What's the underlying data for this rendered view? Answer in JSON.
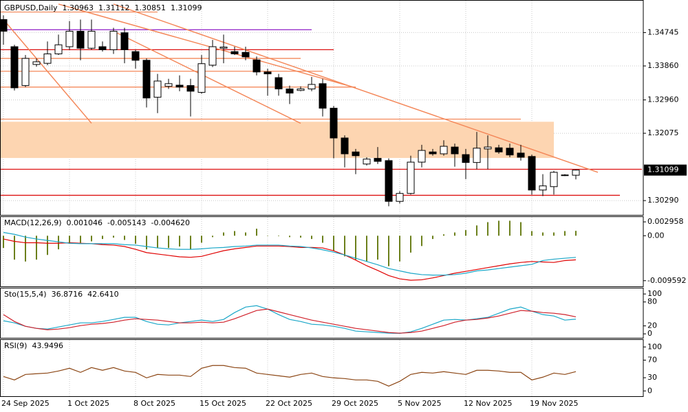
{
  "chart_data": [
    {
      "type": "candlestick",
      "title": "GBPUSD,Daily",
      "categories": [
        "24 Sep 2025",
        null,
        null,
        null,
        null,
        null,
        "1 Oct 2025",
        null,
        null,
        null,
        null,
        null,
        "8 Oct 2025",
        null,
        null,
        null,
        null,
        null,
        "15 Oct 2025",
        null,
        null,
        null,
        null,
        null,
        "22 Oct 2025",
        null,
        null,
        null,
        null,
        null,
        "29 Oct 2025",
        null,
        null,
        null,
        null,
        null,
        "5 Nov 2025",
        null,
        null,
        null,
        null,
        null,
        "12 Nov 2025",
        null,
        null,
        null,
        null,
        null,
        "19 Nov 2025",
        null,
        null,
        null,
        null
      ],
      "open": [
        1.3509,
        1.3437,
        1.3334,
        1.339,
        1.3393,
        1.3418,
        1.3437,
        1.3478,
        1.3433,
        1.3437,
        1.3429,
        1.3474,
        1.3424,
        1.3401,
        1.3303,
        1.3332,
        1.3335,
        1.3334,
        1.3316,
        1.3388,
        1.3433,
        1.3424,
        1.3422,
        1.3402,
        1.337,
        1.3355,
        1.3325,
        1.3321,
        1.3325,
        1.3339,
        1.3274,
        1.3195,
        1.3158,
        1.3126,
        1.3141,
        1.3135,
        1.3027,
        1.3048,
        1.3131,
        1.3158,
        1.3153,
        1.3171,
        1.3151,
        1.313,
        1.3166,
        1.3169,
        1.3168,
        1.3155,
        1.3146,
        1.3057,
        1.3066,
        1.3097,
        1.30963
      ],
      "high": [
        1.352,
        1.3442,
        1.3415,
        1.3406,
        1.3451,
        1.3469,
        1.3505,
        1.3509,
        1.3509,
        1.3451,
        1.3487,
        1.3487,
        1.3429,
        1.3406,
        1.3365,
        1.3352,
        1.3361,
        1.3352,
        1.3415,
        1.3455,
        1.3469,
        1.3437,
        1.3437,
        1.3411,
        1.3379,
        1.3365,
        1.3334,
        1.3332,
        1.3357,
        1.3352,
        1.328,
        1.3202,
        1.3166,
        1.3144,
        1.3171,
        1.3141,
        1.3054,
        1.3148,
        1.3177,
        1.3166,
        1.3189,
        1.318,
        1.3166,
        1.3211,
        1.3202,
        1.3177,
        1.318,
        1.3177,
        1.3151,
        1.3099,
        1.3108,
        1.3099,
        1.31112
      ],
      "low": [
        1.3442,
        1.3321,
        1.333,
        1.3384,
        1.3388,
        1.3415,
        1.3429,
        1.3401,
        1.3429,
        1.3424,
        1.3418,
        1.3393,
        1.3379,
        1.3276,
        1.3261,
        1.3325,
        1.3319,
        1.3252,
        1.3312,
        1.3383,
        1.3393,
        1.3415,
        1.3401,
        1.3361,
        1.3307,
        1.3307,
        1.3285,
        1.3319,
        1.3319,
        1.3252,
        1.3141,
        1.3117,
        1.3099,
        1.3122,
        1.3126,
        1.3014,
        1.3021,
        1.3045,
        1.3117,
        1.3148,
        1.3148,
        1.3119,
        1.3086,
        1.3112,
        1.3112,
        1.3153,
        1.3144,
        1.3135,
        1.3045,
        1.3041,
        1.3045,
        1.3094,
        1.30851
      ],
      "close": [
        1.3478,
        1.3328,
        1.3406,
        1.3397,
        1.3418,
        1.3442,
        1.3478,
        1.3433,
        1.3478,
        1.3429,
        1.3478,
        1.3429,
        1.3401,
        1.3301,
        1.3346,
        1.3339,
        1.333,
        1.3319,
        1.3392,
        1.3437,
        1.3436,
        1.3418,
        1.341,
        1.337,
        1.3365,
        1.3325,
        1.3314,
        1.3325,
        1.3337,
        1.3274,
        1.3195,
        1.3153,
        1.3148,
        1.3139,
        1.3133,
        1.3027,
        1.3048,
        1.3131,
        1.3162,
        1.3153,
        1.3173,
        1.3153,
        1.313,
        1.3168,
        1.3171,
        1.3158,
        1.315,
        1.3144,
        1.3057,
        1.3068,
        1.3104,
        1.3096,
        1.31099
      ],
      "up_color": "#ffffff",
      "down_color": "#000000",
      "ylim": [
        1.2991,
        1.3559
      ],
      "yticks": [
        1.34745,
        {
          "value": 1.3386,
          "label": "1.33860"
        },
        {
          "value": 1.3296,
          "label": "1.32960"
        },
        1.32075,
        {
          "value": 1.3029,
          "label": "1.30290"
        }
      ],
      "grid": true,
      "zones": [
        {
          "ylim": [
            1.3142,
            1.3238
          ],
          "end": 50,
          "color": "#fdd5b1"
        }
      ],
      "hlines": [
        {
          "value": 1.3529,
          "end": 14,
          "color": "#f4885a"
        },
        {
          "value": 1.3482,
          "end": 28,
          "color": "#9932cc"
        },
        {
          "value": 1.3429,
          "end": 30,
          "color": "#dd1111"
        },
        {
          "value": 1.3406,
          "end": 27,
          "color": "#f4885a"
        },
        {
          "value": 1.3372,
          "end": 29,
          "color": "#f4885a"
        },
        {
          "value": 1.333,
          "end": 32,
          "color": "#f4885a"
        },
        {
          "value": 1.3245,
          "end": 47,
          "color": "#f4885a"
        },
        {
          "value": 1.3112,
          "end": 58,
          "color": "#dd1111"
        },
        {
          "value": 1.3043,
          "end": 56,
          "color": "#dd1111"
        }
      ],
      "trendlines": [
        {
          "points": [
            [
              0,
              1.3509
            ],
            [
              8,
              1.3234
            ]
          ],
          "color": "#f4885a"
        },
        {
          "points": [
            [
              5,
              1.355
            ],
            [
              32,
              1.3328
            ]
          ],
          "color": "#f4885a"
        },
        {
          "points": [
            [
              10,
              1.355
            ],
            [
              54,
              1.3104
            ]
          ],
          "color": "#f4885a"
        },
        {
          "points": [
            [
              10,
              1.3478
            ],
            [
              27,
              1.3234
            ]
          ],
          "color": "#f4885a"
        }
      ]
    },
    {
      "type": "macd",
      "title": "MACD(12,26,9)",
      "series": [
        {
          "type": "histogram",
          "color": "#6b7f1a",
          "values": [
            -0.0026,
            -0.0051,
            -0.0055,
            -0.0051,
            -0.0041,
            -0.0029,
            -0.0017,
            -0.0015,
            -0.0012,
            -0.0007,
            -0.0004,
            -0.0009,
            -0.0017,
            -0.0029,
            -0.0026,
            -0.0026,
            -0.0023,
            -0.0029,
            -0.0015,
            -0.0003,
            0.0007,
            0.001,
            0.0007,
            0.0015,
            0,
            -0.0001,
            -0.0003,
            -0.0004,
            -0.0007,
            -0.0015,
            -0.0032,
            -0.0044,
            -0.0051,
            -0.0055,
            -0.0051,
            -0.0065,
            -0.0055,
            -0.0036,
            -0.0022,
            -0.0007,
            0.0003,
            0.0007,
            0.0012,
            0.0022,
            0.0029,
            0.0032,
            0.0032,
            0.0029,
            0.001,
            0.0007,
            0.0007,
            0.001,
            0.001046
          ]
        },
        {
          "type": "line",
          "color": "#e00000",
          "values": [
            -0.0007,
            -0.0012,
            -0.0015,
            -0.0015,
            -0.0016,
            -0.0016,
            -0.0015,
            -0.0016,
            -0.0017,
            -0.0019,
            -0.002,
            -0.0023,
            -0.0029,
            -0.0036,
            -0.0039,
            -0.0042,
            -0.0045,
            -0.0046,
            -0.0044,
            -0.0038,
            -0.0032,
            -0.0028,
            -0.0025,
            -0.0022,
            -0.0022,
            -0.0022,
            -0.0023,
            -0.0025,
            -0.0025,
            -0.0026,
            -0.0032,
            -0.0041,
            -0.0052,
            -0.0064,
            -0.0074,
            -0.0085,
            -0.0092,
            -0.0095,
            -0.0094,
            -0.009,
            -0.0085,
            -0.008,
            -0.0076,
            -0.0072,
            -0.0068,
            -0.0064,
            -0.006,
            -0.0057,
            -0.0055,
            -0.0056,
            -0.0057,
            -0.0053,
            -0.005143
          ]
        },
        {
          "type": "line",
          "color": "#1aa7c8",
          "values": [
            0.0007,
            0.0003,
            -0.0003,
            -0.0007,
            -0.001,
            -0.0013,
            -0.0016,
            -0.0017,
            -0.0017,
            -0.0017,
            -0.0017,
            -0.0019,
            -0.002,
            -0.0023,
            -0.0026,
            -0.0028,
            -0.0029,
            -0.0029,
            -0.0028,
            -0.0026,
            -0.0025,
            -0.0023,
            -0.0022,
            -0.002,
            -0.002,
            -0.002,
            -0.0022,
            -0.0023,
            -0.0026,
            -0.003,
            -0.0035,
            -0.0041,
            -0.0048,
            -0.0055,
            -0.0062,
            -0.007,
            -0.0075,
            -0.008,
            -0.0083,
            -0.0084,
            -0.0084,
            -0.0083,
            -0.008,
            -0.0075,
            -0.0073,
            -0.007,
            -0.0067,
            -0.0064,
            -0.0061,
            -0.0053,
            -0.005,
            -0.0048,
            -0.00462
          ],
          "value_labels": [
            null,
            null,
            null,
            null,
            null,
            null,
            null,
            null,
            null,
            null,
            null,
            null,
            null,
            null,
            null,
            null,
            null,
            null,
            null,
            null,
            null,
            null,
            null,
            null,
            null,
            null,
            null,
            null,
            null,
            null,
            null,
            null,
            null,
            null,
            null,
            null,
            null,
            null,
            null,
            null,
            null,
            null,
            null,
            null,
            null,
            null,
            null,
            null,
            null,
            null,
            null,
            null,
            "-0.004620"
          ]
        }
      ],
      "ylim": [
        -0.0108,
        0.004
      ],
      "yticks": [
        0.002958,
        {
          "value": 0,
          "label": "0.00"
        },
        -0.009592
      ]
    },
    {
      "type": "line",
      "title": "Sto(15,5,4)",
      "series": [
        {
          "color": "#1aa7c8",
          "values": [
            32.8,
            27.6,
            19.0,
            13.8,
            12.1,
            17.2,
            22.4,
            27.6,
            27.6,
            31.0,
            36.2,
            41.4,
            41.4,
            31.0,
            24.1,
            22.4,
            27.6,
            31.0,
            34.5,
            31.0,
            36.2,
            53.4,
            67.2,
            70.7,
            62.1,
            48.3,
            36.2,
            31.0,
            24.1,
            22.4,
            19.0,
            13.8,
            6.9,
            5.2,
            3.4,
            1.7,
            1.2,
            5.2,
            13.8,
            24.1,
            34.5,
            36.2,
            34.5,
            37.9,
            41.4,
            51.7,
            62.1,
            67.2,
            56.9,
            48.3,
            44.8,
            34.5,
            36.8716
          ]
        },
        {
          "color": "#d0202a",
          "values": [
            48.3,
            31.0,
            19.0,
            13.8,
            10.3,
            12.1,
            15.5,
            20.7,
            24.1,
            25.9,
            29.3,
            34.5,
            37.9,
            36.2,
            34.5,
            31.0,
            27.6,
            27.6,
            29.3,
            27.6,
            29.3,
            37.9,
            48.3,
            58.6,
            62.1,
            55.2,
            48.3,
            41.4,
            34.5,
            29.3,
            24.1,
            19.0,
            13.8,
            10.3,
            6.9,
            3.4,
            1.7,
            3.4,
            6.9,
            13.8,
            20.7,
            29.3,
            34.5,
            36.2,
            39.7,
            44.8,
            51.7,
            58.6,
            56.9,
            53.4,
            51.7,
            48.3,
            42.641
          ],
          "value_labels": [
            null,
            null,
            null,
            null,
            null,
            null,
            null,
            null,
            null,
            null,
            null,
            null,
            null,
            null,
            null,
            null,
            null,
            null,
            null,
            null,
            null,
            null,
            null,
            null,
            null,
            null,
            null,
            null,
            null,
            null,
            null,
            null,
            null,
            null,
            null,
            null,
            null,
            null,
            null,
            null,
            null,
            null,
            null,
            null,
            null,
            null,
            null,
            null,
            null,
            null,
            null,
            null,
            "42.6410"
          ]
        }
      ],
      "ylim": [
        -10,
        114
      ],
      "yticks": [
        100,
        80,
        20,
        0
      ]
    },
    {
      "type": "line",
      "title": "RSI(9)",
      "series": [
        {
          "color": "#8b4513",
          "values": [
            32.8,
            25.0,
            37.5,
            39.1,
            40.6,
            45.3,
            51.6,
            42.2,
            53.1,
            46.9,
            53.1,
            45.3,
            42.2,
            29.7,
            37.5,
            35.9,
            35.9,
            32.8,
            51.6,
            57.8,
            57.8,
            53.1,
            51.6,
            40.6,
            37.5,
            34.4,
            31.3,
            37.5,
            40.6,
            32.8,
            29.7,
            28.1,
            25.0,
            25.0,
            21.9,
            10.9,
            21.9,
            37.5,
            42.2,
            40.6,
            43.8,
            40.6,
            37.5,
            46.9,
            46.9,
            45.3,
            42.2,
            42.2,
            25.0,
            31.3,
            40.6,
            37.5,
            43.9496
          ]
        }
      ],
      "ylim": [
        -12,
        116
      ],
      "yticks": [
        100,
        70,
        30,
        0
      ]
    }
  ]
}
